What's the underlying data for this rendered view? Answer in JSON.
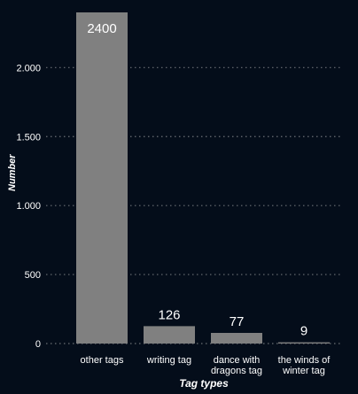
{
  "chart_data": {
    "type": "bar",
    "title": "",
    "xlabel": "Tag types",
    "ylabel": "Number",
    "categories": [
      [
        "other tags"
      ],
      [
        "writing tag"
      ],
      [
        "dance with",
        "dragons tag"
      ],
      [
        "the winds of",
        "winter tag"
      ]
    ],
    "values": [
      2400,
      126,
      77,
      9
    ],
    "data_labels": [
      "2400",
      "126",
      "77",
      "9"
    ],
    "yticks": [
      0,
      500,
      1000,
      1500,
      2000
    ],
    "ytick_labels": [
      "0",
      "500",
      "1.000",
      "1.500",
      "2.000"
    ],
    "ylim": [
      0,
      2400
    ],
    "grid": true,
    "colors": {
      "background": "#040d1a",
      "bar": "#808080",
      "grid": "#6b6f75",
      "text": "#ffffff"
    }
  }
}
